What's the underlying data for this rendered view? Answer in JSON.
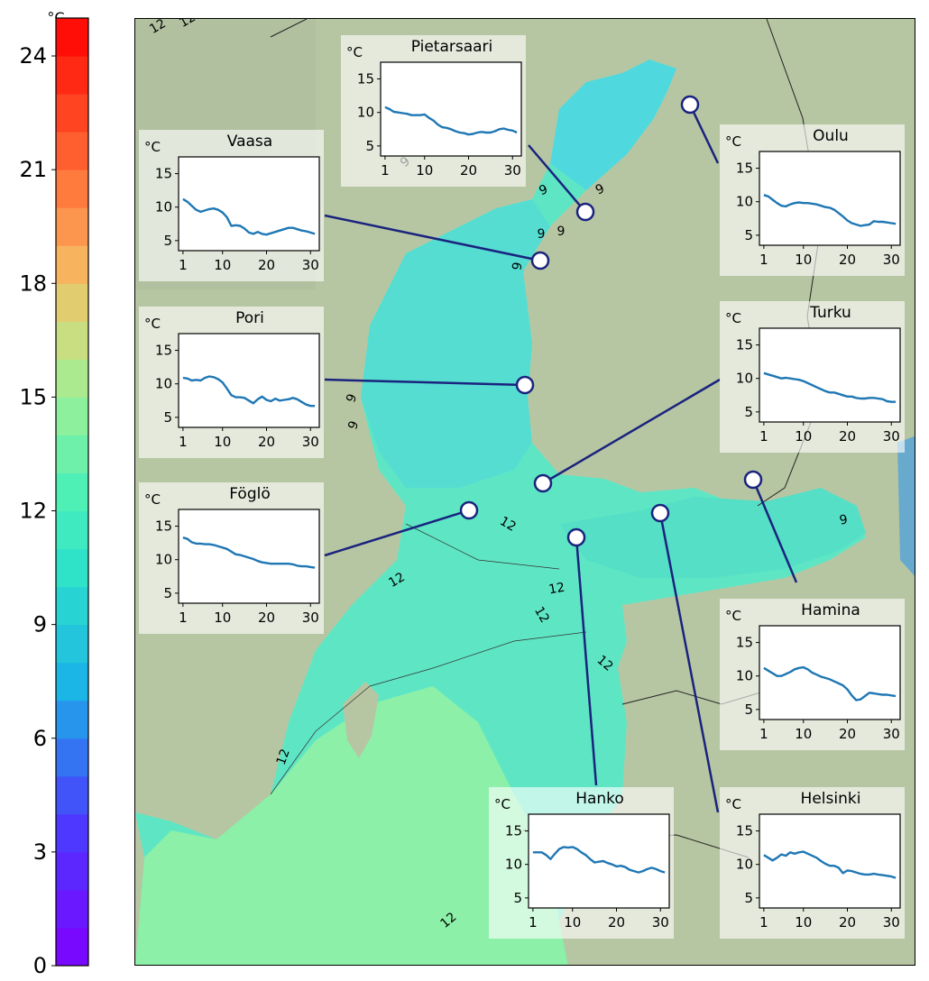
{
  "colorbar": {
    "unit": "°C",
    "ticks": [
      0,
      3,
      6,
      9,
      12,
      15,
      18,
      21,
      24
    ],
    "vmin": 0,
    "vmax": 25
  },
  "contour_labels": [
    "12",
    "12",
    "9",
    "9",
    "9",
    "9",
    "9",
    "9",
    "9",
    "9",
    "12",
    "12",
    "12",
    "12",
    "12",
    "9",
    "12",
    "12"
  ],
  "stations": [
    {
      "name": "Pietarsaari",
      "values": [
        10.8,
        10.5,
        10.1,
        10.0,
        9.9,
        9.8,
        9.6,
        9.6,
        9.6,
        9.7,
        9.2,
        8.8,
        8.2,
        7.8,
        7.7,
        7.5,
        7.2,
        7.0,
        6.9,
        6.7,
        6.8,
        7.0,
        7.1,
        7.0,
        7.0,
        7.2,
        7.5,
        7.6,
        7.4,
        7.3,
        7.0
      ]
    },
    {
      "name": "Oulu",
      "values": [
        11.0,
        10.8,
        10.3,
        9.8,
        9.4,
        9.3,
        9.6,
        9.8,
        9.9,
        9.8,
        9.8,
        9.7,
        9.6,
        9.4,
        9.2,
        9.1,
        8.8,
        8.3,
        7.8,
        7.2,
        6.8,
        6.6,
        6.4,
        6.5,
        6.6,
        7.1,
        7.0,
        7.0,
        6.9,
        6.8,
        6.7
      ]
    },
    {
      "name": "Vaasa",
      "values": [
        11.2,
        10.8,
        10.2,
        9.6,
        9.3,
        9.5,
        9.7,
        9.8,
        9.6,
        9.2,
        8.5,
        7.2,
        7.3,
        7.2,
        6.8,
        6.2,
        6.0,
        6.3,
        6.0,
        5.9,
        6.1,
        6.3,
        6.5,
        6.7,
        6.9,
        6.9,
        6.7,
        6.5,
        6.4,
        6.2,
        6.0
      ]
    },
    {
      "name": "Turku",
      "values": [
        10.8,
        10.6,
        10.4,
        10.2,
        10.0,
        10.1,
        10.0,
        9.9,
        9.8,
        9.6,
        9.3,
        9.0,
        8.7,
        8.4,
        8.1,
        7.9,
        7.9,
        7.7,
        7.5,
        7.3,
        7.3,
        7.1,
        7.0,
        7.0,
        7.1,
        7.1,
        7.0,
        6.9,
        6.6,
        6.5,
        6.5
      ]
    },
    {
      "name": "Pori",
      "values": [
        10.9,
        10.8,
        10.5,
        10.6,
        10.5,
        10.9,
        11.1,
        11.0,
        10.7,
        10.2,
        9.3,
        8.3,
        8.0,
        8.0,
        7.9,
        7.5,
        7.1,
        7.7,
        8.1,
        7.6,
        7.4,
        7.8,
        7.5,
        7.6,
        7.7,
        7.9,
        7.7,
        7.3,
        6.9,
        6.7,
        6.7
      ]
    },
    {
      "name": "Föglö",
      "values": [
        13.3,
        13.1,
        12.6,
        12.4,
        12.4,
        12.3,
        12.3,
        12.2,
        12.0,
        11.8,
        11.6,
        11.2,
        10.8,
        10.7,
        10.5,
        10.3,
        10.1,
        9.8,
        9.6,
        9.5,
        9.4,
        9.4,
        9.4,
        9.4,
        9.4,
        9.3,
        9.1,
        9.0,
        9.0,
        8.9,
        8.8
      ]
    },
    {
      "name": "Hamina",
      "values": [
        11.2,
        10.8,
        10.4,
        10.0,
        10.0,
        10.3,
        10.6,
        11.0,
        11.2,
        11.3,
        11.0,
        10.5,
        10.2,
        9.9,
        9.7,
        9.5,
        9.2,
        8.9,
        8.6,
        8.0,
        7.1,
        6.4,
        6.5,
        7.0,
        7.5,
        7.4,
        7.3,
        7.2,
        7.2,
        7.1,
        7.0
      ]
    },
    {
      "name": "Hanko",
      "values": [
        11.8,
        11.8,
        11.8,
        11.4,
        10.8,
        11.6,
        12.3,
        12.6,
        12.5,
        12.6,
        12.3,
        11.8,
        11.4,
        10.8,
        10.3,
        10.4,
        10.5,
        10.2,
        10.0,
        9.7,
        9.8,
        9.6,
        9.2,
        9.0,
        8.8,
        9.0,
        9.3,
        9.5,
        9.3,
        9.0,
        8.8
      ]
    },
    {
      "name": "Helsinki",
      "values": [
        11.4,
        11.0,
        10.6,
        11.0,
        11.5,
        11.3,
        11.8,
        11.6,
        11.8,
        11.9,
        11.6,
        11.3,
        11.0,
        10.5,
        10.1,
        9.8,
        9.8,
        9.5,
        8.7,
        9.1,
        9.0,
        8.8,
        8.6,
        8.5,
        8.5,
        8.6,
        8.5,
        8.4,
        8.3,
        8.2,
        8.0
      ]
    }
  ],
  "inset_axes": {
    "unit": "°C",
    "x_ticks": [
      1,
      10,
      20,
      30
    ],
    "y_ticks": [
      5,
      10,
      15
    ],
    "xlim": [
      0,
      32
    ],
    "ylim": [
      3.5,
      17.5
    ]
  },
  "colors": {
    "series": "#1f77b4",
    "connector": "#1a237e",
    "marker_fill": "#ffffff"
  }
}
